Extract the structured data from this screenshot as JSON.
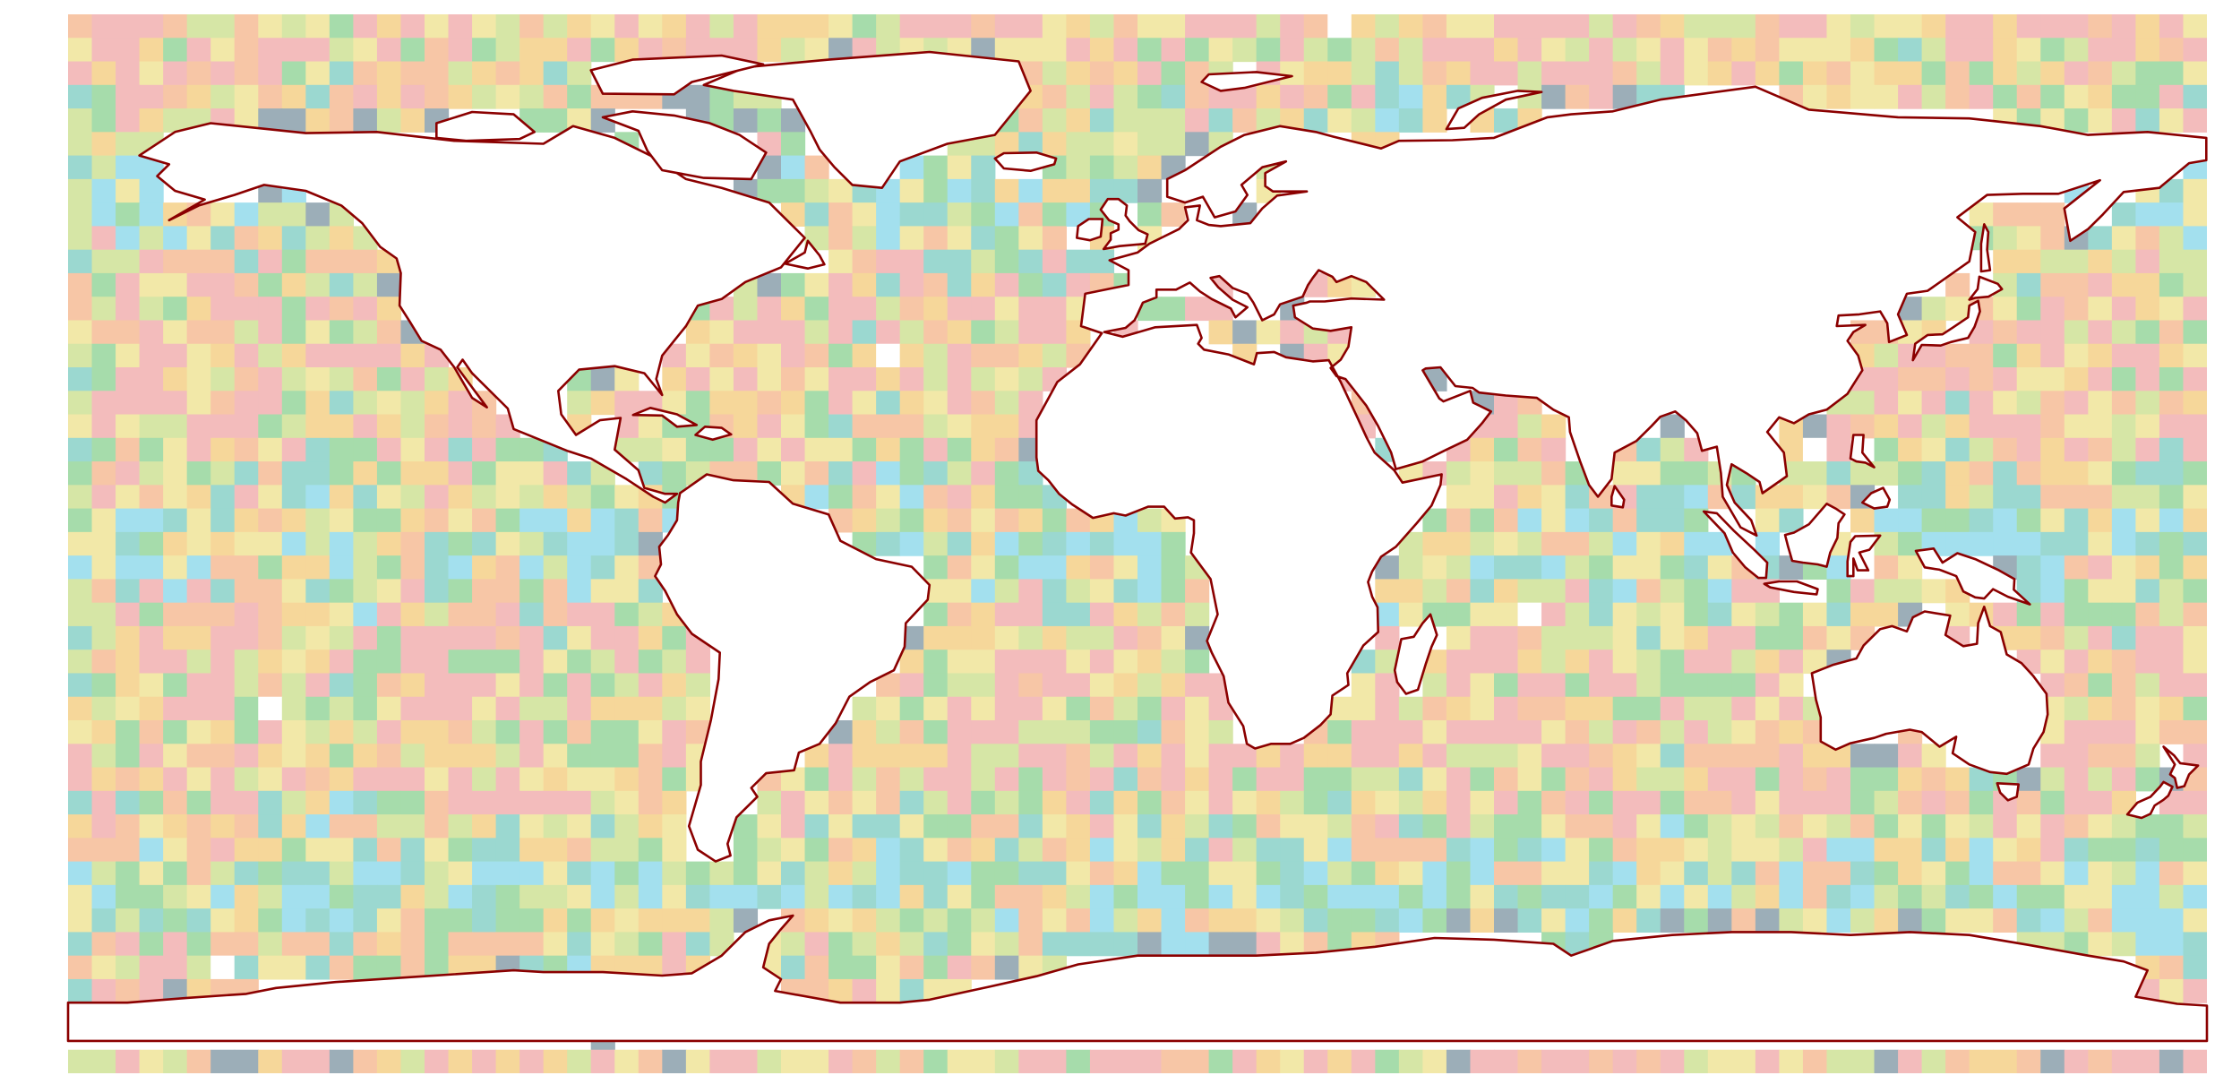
{
  "map": {
    "projection": "equirectangular",
    "extent": {
      "lon": [
        -180,
        180
      ],
      "lat": [
        -90,
        90
      ]
    },
    "grid": {
      "cols": 90,
      "rows": 45,
      "cell_degrees": 4
    },
    "palette": [
      "#a3e0ee",
      "#9bd8d0",
      "#a6dcab",
      "#d6e6a6",
      "#f2e8a8",
      "#f6d79a",
      "#f7c6a6",
      "#f3bcbc"
    ],
    "missing_color": "#9caeb8",
    "land_color": "#ffffff",
    "coastline_color": "#8b0000",
    "show_text_labels": false
  }
}
